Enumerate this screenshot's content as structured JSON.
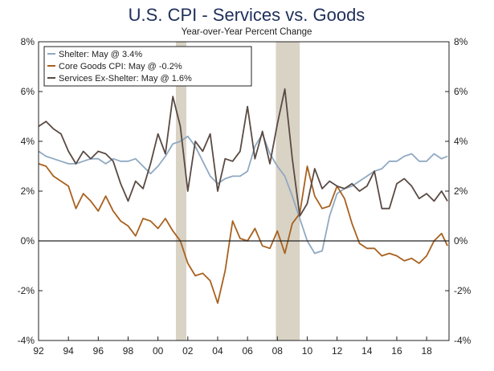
{
  "chart_data": {
    "type": "line",
    "title": "U.S. CPI - Services vs. Goods",
    "subtitle": "Year-over-Year Percent Change",
    "xlim": [
      1992,
      2019.5
    ],
    "ylim": [
      -4,
      8
    ],
    "x_tick_labels": [
      "92",
      "94",
      "96",
      "98",
      "00",
      "02",
      "04",
      "06",
      "08",
      "10",
      "12",
      "14",
      "16",
      "18"
    ],
    "y_tick_labels_left": [
      "8%",
      "6%",
      "4%",
      "2%",
      "0%",
      "-2%",
      "-4%"
    ],
    "y_tick_labels_right": [
      "8%",
      "6%",
      "4%",
      "2%",
      "0%",
      "-2%",
      "-4%"
    ],
    "y_tick_values": [
      8,
      6,
      4,
      2,
      0,
      -2,
      -4
    ],
    "x_tick_values": [
      1992,
      1994,
      1996,
      1998,
      2000,
      2002,
      2004,
      2006,
      2008,
      2010,
      2012,
      2014,
      2016,
      2018
    ],
    "recessions": [
      [
        2001.2,
        2001.9
      ],
      [
        2007.9,
        2009.5
      ]
    ],
    "zero_line": 0,
    "legend_position": "top-left",
    "colors": {
      "shelter": "#8fa9c2",
      "core_goods": "#a8611f",
      "services_ex_shelter": "#5a4a43",
      "recession": "#d9d3c5",
      "frame": "#222222"
    },
    "series": [
      {
        "key": "shelter",
        "name": "Shelter: May @ 3.4%",
        "points": [
          [
            1992.0,
            3.6
          ],
          [
            1992.5,
            3.4
          ],
          [
            1993.0,
            3.3
          ],
          [
            1993.5,
            3.2
          ],
          [
            1994.0,
            3.1
          ],
          [
            1994.5,
            3.1
          ],
          [
            1995.0,
            3.2
          ],
          [
            1995.5,
            3.3
          ],
          [
            1996.0,
            3.3
          ],
          [
            1996.5,
            3.1
          ],
          [
            1997.0,
            3.3
          ],
          [
            1997.5,
            3.2
          ],
          [
            1998.0,
            3.2
          ],
          [
            1998.5,
            3.3
          ],
          [
            1999.0,
            3.0
          ],
          [
            1999.5,
            2.7
          ],
          [
            2000.0,
            3.0
          ],
          [
            2000.5,
            3.4
          ],
          [
            2001.0,
            3.9
          ],
          [
            2001.5,
            4.0
          ],
          [
            2002.0,
            4.2
          ],
          [
            2002.5,
            3.8
          ],
          [
            2003.0,
            3.2
          ],
          [
            2003.5,
            2.6
          ],
          [
            2004.0,
            2.3
          ],
          [
            2004.5,
            2.5
          ],
          [
            2005.0,
            2.6
          ],
          [
            2005.5,
            2.6
          ],
          [
            2006.0,
            2.8
          ],
          [
            2006.5,
            3.8
          ],
          [
            2007.0,
            4.3
          ],
          [
            2007.5,
            3.5
          ],
          [
            2008.0,
            3.0
          ],
          [
            2008.5,
            2.6
          ],
          [
            2009.0,
            1.8
          ],
          [
            2009.5,
            0.9
          ],
          [
            2010.0,
            0.0
          ],
          [
            2010.5,
            -0.5
          ],
          [
            2011.0,
            -0.4
          ],
          [
            2011.5,
            1.0
          ],
          [
            2012.0,
            1.9
          ],
          [
            2012.5,
            2.1
          ],
          [
            2013.0,
            2.2
          ],
          [
            2013.5,
            2.4
          ],
          [
            2014.0,
            2.6
          ],
          [
            2014.5,
            2.8
          ],
          [
            2015.0,
            2.9
          ],
          [
            2015.5,
            3.2
          ],
          [
            2016.0,
            3.2
          ],
          [
            2016.5,
            3.4
          ],
          [
            2017.0,
            3.5
          ],
          [
            2017.5,
            3.2
          ],
          [
            2018.0,
            3.2
          ],
          [
            2018.5,
            3.5
          ],
          [
            2019.0,
            3.3
          ],
          [
            2019.4,
            3.4
          ]
        ]
      },
      {
        "key": "core_goods",
        "name": "Core Goods CPI: May @ -0.2%",
        "points": [
          [
            1992.0,
            3.1
          ],
          [
            1992.5,
            3.0
          ],
          [
            1993.0,
            2.6
          ],
          [
            1993.5,
            2.4
          ],
          [
            1994.0,
            2.2
          ],
          [
            1994.5,
            1.3
          ],
          [
            1995.0,
            1.9
          ],
          [
            1995.5,
            1.6
          ],
          [
            1996.0,
            1.2
          ],
          [
            1996.5,
            1.8
          ],
          [
            1997.0,
            1.2
          ],
          [
            1997.5,
            0.8
          ],
          [
            1998.0,
            0.6
          ],
          [
            1998.5,
            0.2
          ],
          [
            1999.0,
            0.9
          ],
          [
            1999.5,
            0.8
          ],
          [
            2000.0,
            0.5
          ],
          [
            2000.5,
            0.9
          ],
          [
            2001.0,
            0.4
          ],
          [
            2001.5,
            0.0
          ],
          [
            2002.0,
            -0.9
          ],
          [
            2002.5,
            -1.4
          ],
          [
            2003.0,
            -1.3
          ],
          [
            2003.5,
            -1.6
          ],
          [
            2004.0,
            -2.5
          ],
          [
            2004.5,
            -1.2
          ],
          [
            2005.0,
            0.8
          ],
          [
            2005.5,
            0.1
          ],
          [
            2006.0,
            0.0
          ],
          [
            2006.5,
            0.5
          ],
          [
            2007.0,
            -0.2
          ],
          [
            2007.5,
            -0.3
          ],
          [
            2008.0,
            0.4
          ],
          [
            2008.5,
            -0.5
          ],
          [
            2009.0,
            0.7
          ],
          [
            2009.5,
            1.1
          ],
          [
            2010.0,
            3.0
          ],
          [
            2010.5,
            1.8
          ],
          [
            2011.0,
            1.3
          ],
          [
            2011.5,
            1.4
          ],
          [
            2012.0,
            2.2
          ],
          [
            2012.5,
            1.7
          ],
          [
            2013.0,
            0.7
          ],
          [
            2013.5,
            -0.1
          ],
          [
            2014.0,
            -0.3
          ],
          [
            2014.5,
            -0.3
          ],
          [
            2015.0,
            -0.6
          ],
          [
            2015.5,
            -0.5
          ],
          [
            2016.0,
            -0.6
          ],
          [
            2016.5,
            -0.8
          ],
          [
            2017.0,
            -0.7
          ],
          [
            2017.5,
            -0.9
          ],
          [
            2018.0,
            -0.6
          ],
          [
            2018.5,
            0.0
          ],
          [
            2019.0,
            0.3
          ],
          [
            2019.4,
            -0.2
          ]
        ]
      },
      {
        "key": "services_ex_shelter",
        "name": "Services Ex-Shelter: May @ 1.6%",
        "points": [
          [
            1992.0,
            4.6
          ],
          [
            1992.5,
            4.8
          ],
          [
            1993.0,
            4.5
          ],
          [
            1993.5,
            4.3
          ],
          [
            1994.0,
            3.6
          ],
          [
            1994.5,
            3.1
          ],
          [
            1995.0,
            3.6
          ],
          [
            1995.5,
            3.3
          ],
          [
            1996.0,
            3.6
          ],
          [
            1996.5,
            3.5
          ],
          [
            1997.0,
            3.2
          ],
          [
            1997.5,
            2.3
          ],
          [
            1998.0,
            1.6
          ],
          [
            1998.5,
            2.4
          ],
          [
            1999.0,
            2.1
          ],
          [
            1999.5,
            3.1
          ],
          [
            2000.0,
            4.3
          ],
          [
            2000.5,
            3.5
          ],
          [
            2001.0,
            5.8
          ],
          [
            2001.5,
            4.6
          ],
          [
            2002.0,
            2.0
          ],
          [
            2002.5,
            4.0
          ],
          [
            2003.0,
            3.6
          ],
          [
            2003.5,
            4.3
          ],
          [
            2004.0,
            2.0
          ],
          [
            2004.5,
            3.3
          ],
          [
            2005.0,
            3.2
          ],
          [
            2005.5,
            3.6
          ],
          [
            2006.0,
            5.4
          ],
          [
            2006.5,
            3.3
          ],
          [
            2007.0,
            4.4
          ],
          [
            2007.5,
            3.1
          ],
          [
            2008.0,
            4.7
          ],
          [
            2008.5,
            6.1
          ],
          [
            2009.0,
            3.3
          ],
          [
            2009.5,
            1.0
          ],
          [
            2010.0,
            1.5
          ],
          [
            2010.5,
            2.9
          ],
          [
            2011.0,
            2.1
          ],
          [
            2011.5,
            2.4
          ],
          [
            2012.0,
            2.2
          ],
          [
            2012.5,
            2.1
          ],
          [
            2013.0,
            2.3
          ],
          [
            2013.5,
            2.0
          ],
          [
            2014.0,
            2.2
          ],
          [
            2014.5,
            2.8
          ],
          [
            2015.0,
            1.3
          ],
          [
            2015.5,
            1.3
          ],
          [
            2016.0,
            2.3
          ],
          [
            2016.5,
            2.5
          ],
          [
            2017.0,
            2.2
          ],
          [
            2017.5,
            1.7
          ],
          [
            2018.0,
            1.9
          ],
          [
            2018.5,
            1.6
          ],
          [
            2019.0,
            2.0
          ],
          [
            2019.4,
            1.6
          ]
        ]
      }
    ]
  }
}
